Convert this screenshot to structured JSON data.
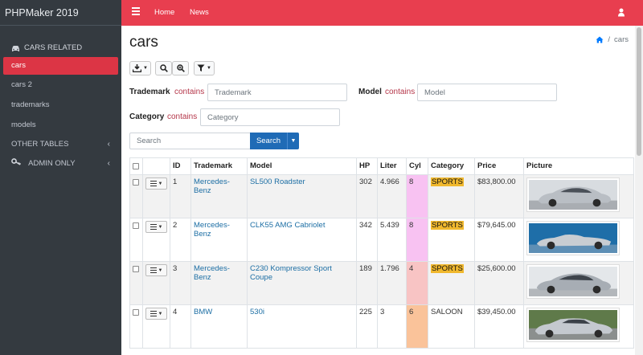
{
  "app": {
    "brand": "PHPMaker 2019"
  },
  "sidebar": {
    "section_label": "CARS RELATED",
    "items": [
      {
        "label": "cars",
        "active": true
      },
      {
        "label": "cars 2"
      },
      {
        "label": "trademarks"
      },
      {
        "label": "models"
      },
      {
        "label": "OTHER TABLES",
        "chevron": "‹"
      },
      {
        "label": "ADMIN ONLY",
        "chevron": "‹"
      }
    ]
  },
  "topbar": {
    "nav": [
      "Home",
      "News"
    ]
  },
  "page": {
    "title": "cars",
    "breadcrumb_current": "cars"
  },
  "filters": {
    "trademark": {
      "label": "Trademark",
      "op": "contains",
      "placeholder": "Trademark"
    },
    "model": {
      "label": "Model",
      "op": "contains",
      "placeholder": "Model"
    },
    "category": {
      "label": "Category",
      "op": "contains",
      "placeholder": "Category"
    }
  },
  "search": {
    "placeholder": "Search",
    "button": "Search"
  },
  "table": {
    "headers": [
      "ID",
      "Trademark",
      "Model",
      "HP",
      "Liter",
      "Cyl",
      "Category",
      "Price",
      "Picture"
    ],
    "rows": [
      {
        "id": "1",
        "trademark": "Mercedes-Benz",
        "model": "SL500 Roadster",
        "hp": "302",
        "liter": "4.966",
        "cyl": "8",
        "category": "SPORTS",
        "price": "$83,800.00"
      },
      {
        "id": "2",
        "trademark": "Mercedes-Benz",
        "model": "CLK55 AMG Cabriolet",
        "hp": "342",
        "liter": "5.439",
        "cyl": "8",
        "category": "SPORTS",
        "price": "$79,645.00"
      },
      {
        "id": "3",
        "trademark": "Mercedes-Benz",
        "model": "C230 Kompressor Sport Coupe",
        "hp": "189",
        "liter": "1.796",
        "cyl": "4",
        "category": "SPORTS",
        "price": "$25,600.00"
      },
      {
        "id": "4",
        "trademark": "BMW",
        "model": "530i",
        "hp": "225",
        "liter": "3",
        "cyl": "6",
        "category": "SALOON",
        "price": "$39,450.00"
      }
    ]
  },
  "colors": {
    "accent": "#e83e4f",
    "sidebar": "#343a40",
    "primary": "#1f6bb6",
    "badge": "#f0b82e"
  }
}
